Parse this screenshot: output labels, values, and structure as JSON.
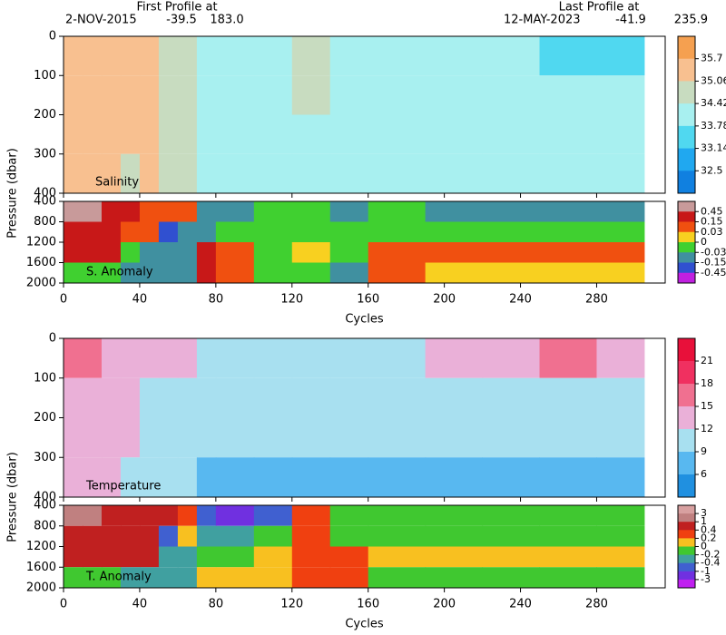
{
  "header": {
    "first_label": "First Profile at",
    "first_date": "2-NOV-2015",
    "first_lat": "-39.5",
    "first_lon": "183.0",
    "last_label": "Last Profile at",
    "last_date": "12-MAY-2023",
    "last_lat": "-41.9",
    "last_lon": "235.9"
  },
  "chart_data": [
    {
      "type": "heatmap",
      "panel_label": "Salinity",
      "ylabel": "Pressure (dbar)",
      "x_edges": [
        0,
        10,
        20,
        30,
        40,
        50,
        60,
        70,
        80,
        100,
        120,
        140,
        160,
        190,
        220,
        250,
        280,
        305
      ],
      "y_edges": [
        0,
        100,
        200,
        300,
        400
      ],
      "values": [
        [
          35.3,
          35.4,
          35.3,
          35.2,
          35.3,
          35.0,
          34.6,
          34.3,
          34.0,
          34.1,
          34.6,
          34.0,
          34.0,
          34.0,
          33.8,
          33.7,
          33.7
        ],
        [
          35.3,
          35.3,
          35.2,
          35.2,
          35.2,
          34.8,
          34.6,
          34.3,
          34.1,
          34.1,
          34.5,
          34.1,
          34.1,
          34.1,
          34.1,
          34.1,
          34.1
        ],
        [
          35.2,
          35.1,
          35.1,
          35.1,
          35.1,
          34.7,
          34.6,
          34.3,
          34.1,
          34.1,
          34.3,
          34.1,
          34.1,
          34.1,
          34.1,
          34.1,
          34.1
        ],
        [
          35.1,
          35.1,
          35.1,
          35.0,
          35.1,
          34.6,
          34.5,
          34.3,
          34.2,
          34.1,
          34.2,
          34.1,
          34.1,
          34.1,
          34.1,
          34.1,
          34.1
        ]
      ],
      "xlim": [
        0,
        316
      ],
      "ylim": [
        0,
        400
      ],
      "y_inverted": true,
      "xticks": [
        0,
        40,
        80,
        120,
        160,
        200,
        240,
        280
      ],
      "yticks": [
        0,
        100,
        200,
        300,
        400
      ],
      "colorbar": {
        "ticks": [
          35.7,
          35.06,
          34.42,
          33.78,
          33.14,
          32.5
        ],
        "colors": [
          "#f5a050",
          "#f8c090",
          "#c8dcc0",
          "#a8f0f0",
          "#50d8f0",
          "#20a8f0",
          "#1080e0"
        ]
      }
    },
    {
      "type": "heatmap",
      "panel_label": "S. Anomaly",
      "xlabel": "Cycles",
      "x_edges": [
        0,
        10,
        20,
        30,
        40,
        50,
        60,
        70,
        80,
        100,
        120,
        140,
        160,
        190,
        220,
        250,
        280,
        305
      ],
      "y_edges": [
        400,
        800,
        1200,
        1600,
        2000
      ],
      "values": [
        [
          0.5,
          0.5,
          0.2,
          0.2,
          0.1,
          0.1,
          0.05,
          -0.1,
          -0.1,
          -0.02,
          -0.02,
          -0.05,
          -0.02,
          -0.05,
          -0.1,
          -0.05,
          -0.05
        ],
        [
          0.2,
          0.2,
          0.2,
          0.1,
          0.1,
          -0.2,
          -0.1,
          -0.1,
          -0.02,
          -0.02,
          -0.02,
          -0.02,
          -0.02,
          -0.02,
          -0.02,
          -0.02,
          -0.02
        ],
        [
          0.2,
          0.15,
          0.15,
          -0.02,
          -0.1,
          -0.1,
          -0.1,
          0.2,
          0.1,
          -0.02,
          0.02,
          -0.02,
          0.1,
          0.04,
          0.04,
          0.04,
          0.04
        ],
        [
          -0.02,
          -0.02,
          -0.02,
          -0.05,
          -0.05,
          -0.1,
          -0.1,
          0.2,
          0.1,
          -0.02,
          -0.02,
          -0.05,
          0.05,
          0.02,
          0.02,
          0.02,
          0.02
        ]
      ],
      "xlim": [
        0,
        316
      ],
      "ylim": [
        400,
        2000
      ],
      "y_inverted": true,
      "xticks": [
        0,
        40,
        80,
        120,
        160,
        200,
        240,
        280
      ],
      "yticks": [
        400,
        800,
        1200,
        1600,
        2000
      ],
      "colorbar": {
        "ticks": [
          0.45,
          0.15,
          0.03,
          0,
          -0.03,
          -0.15,
          -0.45
        ],
        "colors": [
          "#c89a9a",
          "#c81818",
          "#f05010",
          "#f8d020",
          "#40d030",
          "#4090a0",
          "#3050d0",
          "#c020e0"
        ]
      }
    },
    {
      "type": "heatmap",
      "panel_label": "Temperature",
      "ylabel": "Pressure (dbar)",
      "x_edges": [
        0,
        10,
        20,
        30,
        40,
        50,
        60,
        70,
        80,
        100,
        120,
        140,
        160,
        190,
        220,
        250,
        280,
        305
      ],
      "y_edges": [
        0,
        100,
        200,
        300,
        400
      ],
      "values": [
        [
          16,
          17,
          14,
          13,
          13,
          12,
          12,
          11,
          11,
          11,
          11,
          11,
          11,
          12,
          14,
          15,
          13
        ],
        [
          13,
          12,
          12,
          12,
          11,
          11,
          11,
          10,
          10,
          10,
          10,
          10,
          10,
          10,
          10,
          10,
          10
        ],
        [
          13,
          12,
          12,
          12,
          11,
          11,
          10,
          9,
          9,
          9,
          9,
          9,
          9,
          9,
          9,
          9,
          9
        ],
        [
          13,
          12,
          12,
          11,
          11,
          11,
          10,
          8.5,
          8.5,
          8.5,
          8.5,
          8.5,
          8.5,
          8.5,
          8.5,
          8.5,
          8.5
        ]
      ],
      "xlim": [
        0,
        316
      ],
      "ylim": [
        0,
        400
      ],
      "y_inverted": true,
      "xticks": [
        0,
        40,
        80,
        120,
        160,
        200,
        240,
        280
      ],
      "yticks": [
        0,
        100,
        200,
        300,
        400
      ],
      "colorbar": {
        "ticks": [
          21,
          18,
          15,
          12,
          9,
          6
        ],
        "colors": [
          "#e8103a",
          "#f03060",
          "#f07090",
          "#eab0d8",
          "#a8e0f0",
          "#58b8f0",
          "#2090e0"
        ]
      }
    },
    {
      "type": "heatmap",
      "panel_label": "T. Anomaly",
      "xlabel": "Cycles",
      "x_edges": [
        0,
        10,
        20,
        30,
        40,
        50,
        60,
        70,
        80,
        100,
        120,
        140,
        160,
        190,
        220,
        250,
        280,
        305
      ],
      "y_edges": [
        400,
        800,
        1200,
        1600,
        2000
      ],
      "values": [
        [
          1.5,
          1.5,
          0.7,
          0.7,
          0.5,
          0.5,
          0.3,
          -0.7,
          -1.2,
          -0.5,
          0.3,
          -0.1,
          -0.1,
          -0.1,
          -0.1,
          -0.1,
          -0.1
        ],
        [
          0.7,
          0.7,
          0.7,
          0.7,
          0.5,
          -0.5,
          0,
          -0.3,
          -0.3,
          -0.1,
          0.3,
          -0.1,
          -0.1,
          -0.1,
          -0.1,
          -0.1,
          -0.1
        ],
        [
          0.7,
          0.5,
          0.5,
          0.7,
          0.7,
          -0.3,
          -0.3,
          -0.1,
          -0.1,
          0.1,
          0.3,
          0.3,
          0.1,
          0.1,
          0.1,
          0.1,
          0.1
        ],
        [
          -0.1,
          -0.1,
          -0.1,
          -0.3,
          -0.3,
          -0.3,
          -0.3,
          0,
          0,
          0.1,
          0.3,
          0.3,
          -0.1,
          -0.1,
          -0.1,
          -0.1,
          -0.1
        ]
      ],
      "xlim": [
        0,
        316
      ],
      "ylim": [
        400,
        2000
      ],
      "y_inverted": true,
      "xticks": [
        0,
        40,
        80,
        120,
        160,
        200,
        240,
        280
      ],
      "yticks": [
        400,
        800,
        1200,
        1600,
        2000
      ],
      "colorbar": {
        "ticks": [
          3,
          1,
          0.4,
          0.2,
          0,
          -0.2,
          -0.4,
          -1,
          -3
        ],
        "colors": [
          "#d8a0a0",
          "#c08080",
          "#c02020",
          "#f04010",
          "#f8c020",
          "#40c830",
          "#40a0a0",
          "#4060d0",
          "#7030e0",
          "#c020f0"
        ]
      }
    }
  ]
}
